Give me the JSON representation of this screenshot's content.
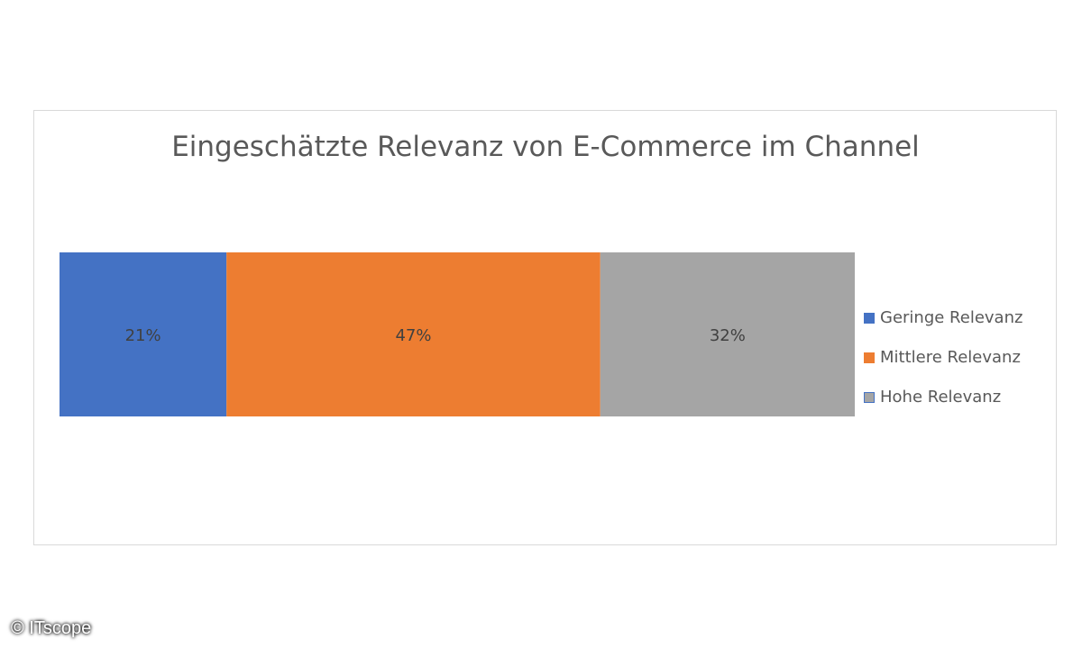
{
  "chart_data": {
    "type": "bar",
    "orientation": "horizontal-stacked-100",
    "title": "Eingeschätzte Relevanz von E-Commerce im Channel",
    "categories": [
      ""
    ],
    "series": [
      {
        "name": "Geringe Relevanz",
        "values": [
          21
        ],
        "label": "21%",
        "color": "#4472c4"
      },
      {
        "name": "Mittlere Relevanz",
        "values": [
          47
        ],
        "label": "47%",
        "color": "#ed7d31"
      },
      {
        "name": "Hohe Relevanz",
        "values": [
          32
        ],
        "label": "32%",
        "color": "#a5a5a5"
      }
    ],
    "xlim": [
      0,
      100
    ],
    "grid": false,
    "legend_position": "right"
  },
  "credit": "© ITscope"
}
